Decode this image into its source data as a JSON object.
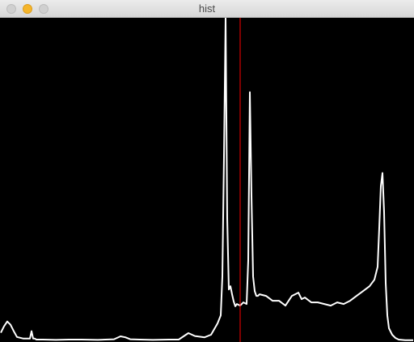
{
  "window": {
    "title": "hist"
  },
  "colors": {
    "background": "#000000",
    "histogram": "#ffffff",
    "marker": "#ff0000"
  },
  "chart_data": {
    "type": "line",
    "title": "",
    "xlabel": "",
    "ylabel": "",
    "grid": false,
    "xlim": [
      0,
      255
    ],
    "ylim": [
      0,
      100
    ],
    "marker_x": 148,
    "x": [
      0,
      2,
      4,
      6,
      8,
      10,
      14,
      18,
      19,
      20,
      21,
      22,
      26,
      34,
      42,
      50,
      60,
      70,
      74,
      77,
      80,
      86,
      94,
      104,
      110,
      116,
      120,
      126,
      130,
      134,
      136,
      137,
      138,
      139,
      140,
      141,
      142,
      143,
      144,
      145,
      146,
      148,
      150,
      152,
      153,
      154,
      155,
      156,
      157,
      158,
      159,
      160,
      164,
      168,
      172,
      176,
      180,
      184,
      186,
      188,
      192,
      196,
      200,
      204,
      208,
      212,
      216,
      220,
      224,
      228,
      231,
      233,
      234,
      235,
      236,
      237,
      238,
      239,
      240,
      242,
      244,
      246,
      250,
      255
    ],
    "values": [
      2.6,
      4.6,
      6.1,
      5.1,
      3.1,
      1.3,
      0.8,
      0.8,
      3.1,
      0.8,
      0.8,
      0.5,
      0.5,
      0.4,
      0.5,
      0.5,
      0.4,
      0.6,
      1.5,
      1.2,
      0.6,
      0.5,
      0.4,
      0.5,
      0.5,
      2.5,
      1.6,
      1.2,
      2.0,
      5.5,
      8.0,
      20.0,
      57.0,
      100.0,
      38.0,
      16.0,
      17.0,
      14.5,
      12.3,
      10.8,
      11.5,
      11.0,
      12.0,
      11.5,
      25.0,
      77.0,
      45.0,
      20.0,
      15.5,
      14.0,
      14.0,
      14.5,
      14.0,
      12.5,
      12.5,
      11.0,
      14.0,
      15.0,
      13.0,
      13.5,
      12.0,
      12.0,
      11.5,
      11.0,
      12.0,
      11.5,
      12.5,
      14.0,
      15.5,
      17.0,
      19.0,
      23.0,
      35.0,
      48.0,
      52.0,
      40.0,
      18.0,
      8.0,
      4.0,
      2.0,
      1.0,
      0.5,
      0.3,
      0.3
    ]
  }
}
